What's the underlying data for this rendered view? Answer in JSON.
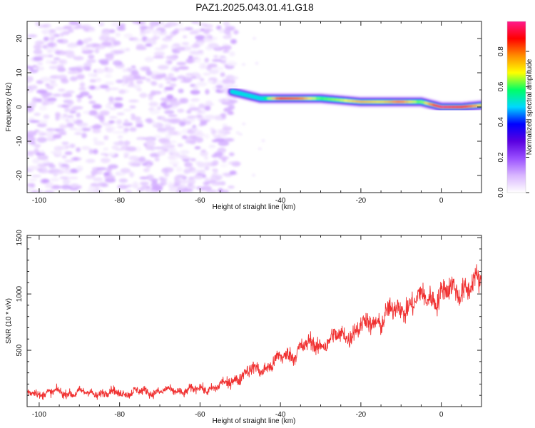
{
  "title": "PAZ1.2025.043.01.41.G18",
  "chart_data": [
    {
      "type": "heatmap",
      "xlabel": "Height of straight line (km)",
      "ylabel": "Frequency (Hz)",
      "xlim": [
        -103,
        10
      ],
      "ylim": [
        -25,
        25
      ],
      "xticks": [
        -100,
        -80,
        -60,
        -40,
        -20,
        0
      ],
      "yticks": [
        -20,
        -10,
        0,
        10,
        20
      ],
      "colorbar": {
        "label": "Normalized spectral amplitude",
        "range": [
          0,
          0.97
        ],
        "ticks": [
          0.0,
          0.2,
          0.4,
          0.6,
          0.8
        ],
        "colormap": [
          "#ffffff",
          "#d9b6ff",
          "#9a50ff",
          "#5a00e0",
          "#0000ff",
          "#00d8ff",
          "#00ff66",
          "#ffff00",
          "#ff8c00",
          "#ff0000",
          "#ff1a8c"
        ]
      },
      "noise_region": {
        "x": [
          -103,
          -52
        ],
        "amplitude": [
          0.02,
          0.12
        ]
      },
      "ridge": {
        "x": [
          -52,
          -45,
          -40,
          -35,
          -30,
          -25,
          -20,
          -15,
          -10,
          -5,
          0,
          5,
          10
        ],
        "frequency": [
          4.5,
          2.5,
          2.5,
          2.5,
          2.5,
          2,
          1.5,
          1.5,
          1.5,
          1.5,
          0,
          0,
          0.5
        ],
        "amplitude": [
          0.5,
          0.45,
          0.85,
          0.8,
          0.6,
          0.65,
          0.75,
          0.7,
          0.8,
          0.6,
          0.95,
          0.9,
          0.7
        ]
      }
    },
    {
      "type": "line",
      "xlabel": "Height of straight line (km)",
      "ylabel": "SNR (10 * v/v)",
      "xlim": [
        -103,
        10
      ],
      "ylim": [
        0,
        1520
      ],
      "xticks": [
        -100,
        -80,
        -60,
        -40,
        -20,
        0
      ],
      "yticks": [
        500,
        1000,
        1500
      ],
      "line_color": "#f03030",
      "series": [
        {
          "x": [
            -103,
            -95,
            -85,
            -75,
            -65,
            -58,
            -53,
            -51,
            -48,
            -45,
            -40,
            -35,
            -30,
            -25,
            -20,
            -15,
            -10,
            -5,
            0,
            5,
            10
          ],
          "mean": [
            120,
            125,
            120,
            130,
            140,
            160,
            200,
            260,
            310,
            330,
            420,
            520,
            560,
            620,
            700,
            780,
            880,
            950,
            1000,
            1050,
            1100
          ],
          "spread": [
            110,
            110,
            110,
            110,
            110,
            120,
            150,
            160,
            170,
            180,
            200,
            220,
            230,
            240,
            260,
            280,
            300,
            310,
            320,
            320,
            320
          ]
        }
      ]
    }
  ]
}
